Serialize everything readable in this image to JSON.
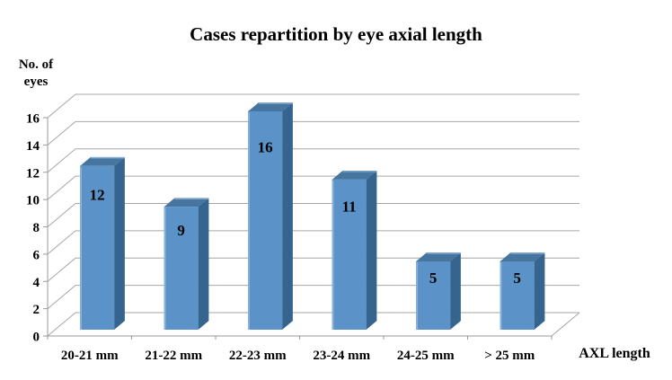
{
  "figure": {
    "y_axis_title_line1": "No. of",
    "y_axis_title_line2": "eyes"
  },
  "chart_data": {
    "type": "bar",
    "style": "3d-column",
    "title": "Cases repartition by eye axial length",
    "xlabel": "AXL length",
    "ylabel": "No. of eyes",
    "categories": [
      "20-21 mm",
      "21-22 mm",
      "22-23 mm",
      "23-24 mm",
      "24-25 mm",
      "> 25 mm"
    ],
    "values": [
      12,
      9,
      16,
      11,
      5,
      5
    ],
    "ylim": [
      0,
      16
    ],
    "ytick_step": 2,
    "yticks": [
      0,
      2,
      4,
      6,
      8,
      10,
      12,
      14,
      16
    ],
    "grid": true,
    "legend": false,
    "data_labels": "inside-end",
    "colors": {
      "bar_front": "#5B92C8",
      "bar_side": "#35648F",
      "bar_top": "#46759F",
      "bar_highlight": "#8AB2DC",
      "gridline": "#A6A6A6",
      "axis": "#9A9A9A",
      "text": "#000000",
      "background": "#FFFFFF"
    }
  }
}
